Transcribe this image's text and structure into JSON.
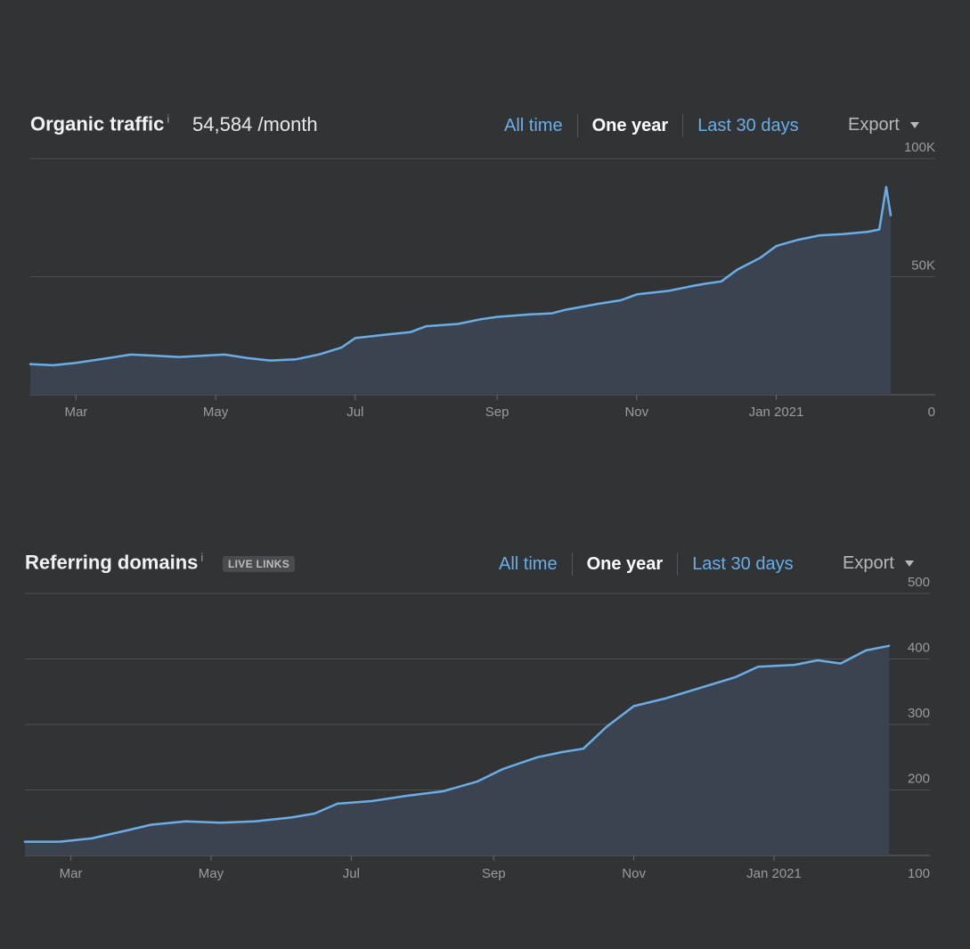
{
  "colors": {
    "background": "#323335",
    "line": "#6aaee8",
    "area": "#3c4350",
    "grid": "#4e4f52",
    "tab_link": "#6aaee8",
    "tab_active": "#ffffff"
  },
  "panels": [
    {
      "title": "Organic traffic",
      "info_icon": "i",
      "metric": "54,584 /month",
      "badge": "",
      "tabs": [
        {
          "label": "All time",
          "active": false
        },
        {
          "label": "One year",
          "active": true
        },
        {
          "label": "Last 30 days",
          "active": false
        }
      ],
      "export_label": "Export"
    },
    {
      "title": "Referring domains",
      "info_icon": "i",
      "metric": "",
      "badge": "LIVE LINKS",
      "tabs": [
        {
          "label": "All time",
          "active": false
        },
        {
          "label": "One year",
          "active": true
        },
        {
          "label": "Last 30 days",
          "active": false
        }
      ],
      "export_label": "Export"
    }
  ],
  "chart_data": [
    {
      "type": "area",
      "title": "Organic traffic",
      "xlabel": "",
      "ylabel": "",
      "x_tick_labels": [
        "Mar",
        "May",
        "Jul",
        "Sep",
        "Nov",
        "Jan 2021"
      ],
      "x_tick_dates": [
        "2020-03-01",
        "2020-05-01",
        "2020-07-01",
        "2020-09-01",
        "2020-11-01",
        "2021-01-01"
      ],
      "xlim": [
        "2020-02-10",
        "2021-02-20"
      ],
      "y_tick_labels": [
        "100K",
        "50K",
        "0"
      ],
      "y_tick_values": [
        100000,
        50000,
        0
      ],
      "ylim": [
        0,
        100000
      ],
      "grid": true,
      "series": [
        {
          "name": "",
          "x": [
            "2020-02-10",
            "2020-02-20",
            "2020-03-01",
            "2020-03-15",
            "2020-03-25",
            "2020-04-05",
            "2020-04-15",
            "2020-04-25",
            "2020-05-05",
            "2020-05-15",
            "2020-05-25",
            "2020-06-05",
            "2020-06-15",
            "2020-06-25",
            "2020-07-01",
            "2020-07-15",
            "2020-07-25",
            "2020-08-01",
            "2020-08-15",
            "2020-08-25",
            "2020-09-01",
            "2020-09-15",
            "2020-09-25",
            "2020-10-01",
            "2020-10-15",
            "2020-10-25",
            "2020-11-01",
            "2020-11-15",
            "2020-11-25",
            "2020-12-01",
            "2020-12-08",
            "2020-12-15",
            "2020-12-25",
            "2021-01-01",
            "2021-01-10",
            "2021-01-20",
            "2021-01-30",
            "2021-02-10",
            "2021-02-15",
            "2021-02-18",
            "2021-02-20"
          ],
          "values": [
            13000,
            12500,
            13500,
            15500,
            17000,
            16500,
            16000,
            16500,
            17000,
            15500,
            14500,
            15000,
            17000,
            20000,
            24000,
            25500,
            26500,
            29000,
            30000,
            32000,
            33000,
            34000,
            34500,
            36000,
            38500,
            40000,
            42500,
            44000,
            46000,
            47000,
            48000,
            53000,
            58000,
            63000,
            65500,
            67500,
            68000,
            69000,
            70000,
            88000,
            76000
          ]
        }
      ]
    },
    {
      "type": "area",
      "title": "Referring domains",
      "xlabel": "",
      "ylabel": "",
      "x_tick_labels": [
        "Mar",
        "May",
        "Jul",
        "Sep",
        "Nov",
        "Jan 2021"
      ],
      "x_tick_dates": [
        "2020-03-01",
        "2020-05-01",
        "2020-07-01",
        "2020-09-01",
        "2020-11-01",
        "2021-01-01"
      ],
      "xlim": [
        "2020-02-10",
        "2021-02-20"
      ],
      "y_tick_labels": [
        "500",
        "400",
        "300",
        "200",
        "100"
      ],
      "y_tick_values": [
        500,
        400,
        300,
        200,
        100
      ],
      "ylim": [
        100,
        500
      ],
      "grid": true,
      "series": [
        {
          "name": "",
          "x": [
            "2020-02-10",
            "2020-02-25",
            "2020-03-10",
            "2020-03-25",
            "2020-04-05",
            "2020-04-20",
            "2020-05-05",
            "2020-05-20",
            "2020-06-05",
            "2020-06-15",
            "2020-06-25",
            "2020-07-10",
            "2020-07-25",
            "2020-08-10",
            "2020-08-25",
            "2020-09-05",
            "2020-09-20",
            "2020-10-01",
            "2020-10-10",
            "2020-10-20",
            "2020-11-01",
            "2020-11-15",
            "2020-12-01",
            "2020-12-15",
            "2020-12-25",
            "2021-01-10",
            "2021-01-20",
            "2021-01-30",
            "2021-02-10",
            "2021-02-20"
          ],
          "values": [
            121,
            121,
            126,
            138,
            147,
            152,
            150,
            152,
            158,
            164,
            179,
            183,
            191,
            198,
            213,
            232,
            250,
            258,
            263,
            296,
            328,
            340,
            357,
            372,
            388,
            391,
            398,
            393,
            413,
            420
          ]
        }
      ]
    }
  ]
}
